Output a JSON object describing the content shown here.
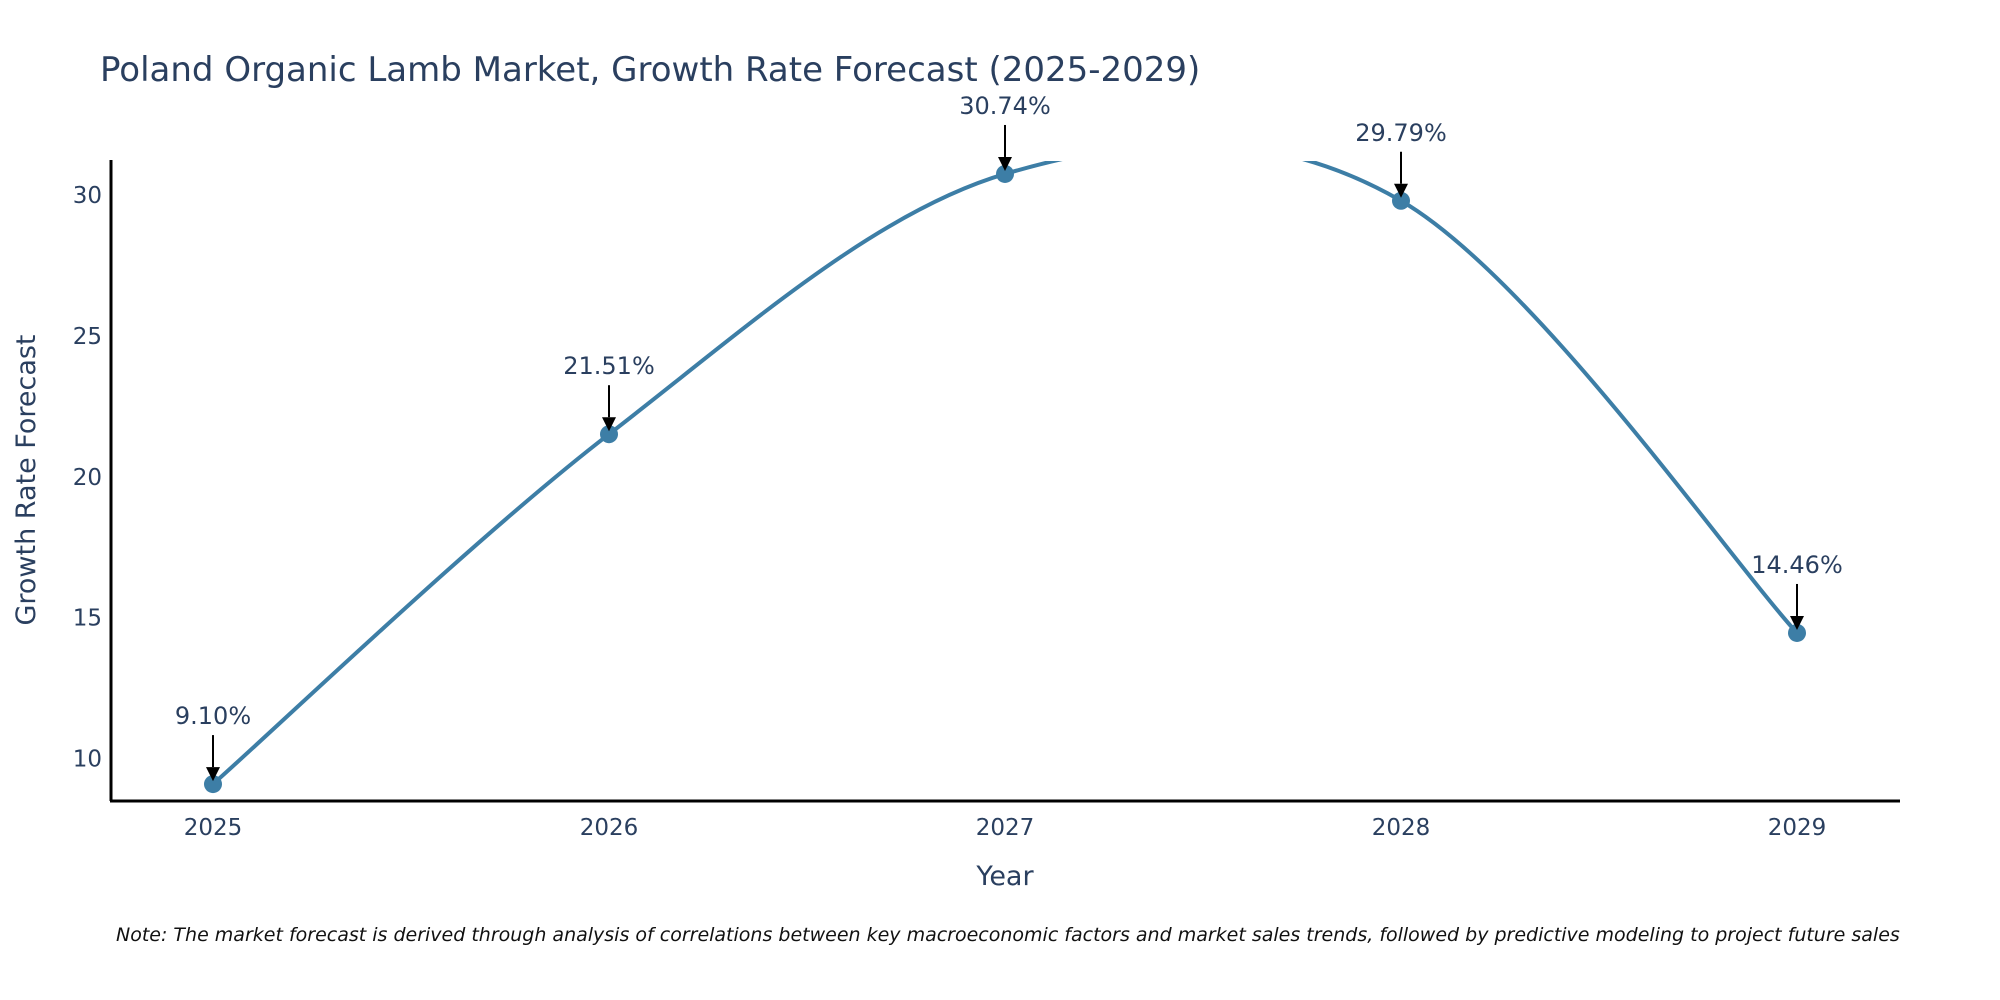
{
  "chart_data": {
    "type": "line",
    "title": "Poland Organic Lamb Market, Growth Rate Forecast (2025-2029)",
    "xlabel": "Year",
    "ylabel": "Growth Rate Forecast",
    "categories": [
      "2025",
      "2026",
      "2027",
      "2028",
      "2029"
    ],
    "series": [
      {
        "name": "Growth Rate Forecast",
        "values": [
          9.1,
          21.51,
          30.74,
          29.79,
          14.46
        ],
        "labels": [
          "9.10%",
          "21.51%",
          "30.74%",
          "29.79%",
          "14.46%"
        ]
      }
    ],
    "yticks": [
      "10",
      "15",
      "20",
      "25",
      "30"
    ],
    "ylim": [
      8.5,
      31.2
    ],
    "grid": false,
    "line_color": "#3d7ea6",
    "marker_color": "#3d7ea6",
    "note": "Note: The market forecast is derived through analysis of correlations between key macroeconomic factors and market sales trends, followed by predictive modeling to project future sales"
  }
}
